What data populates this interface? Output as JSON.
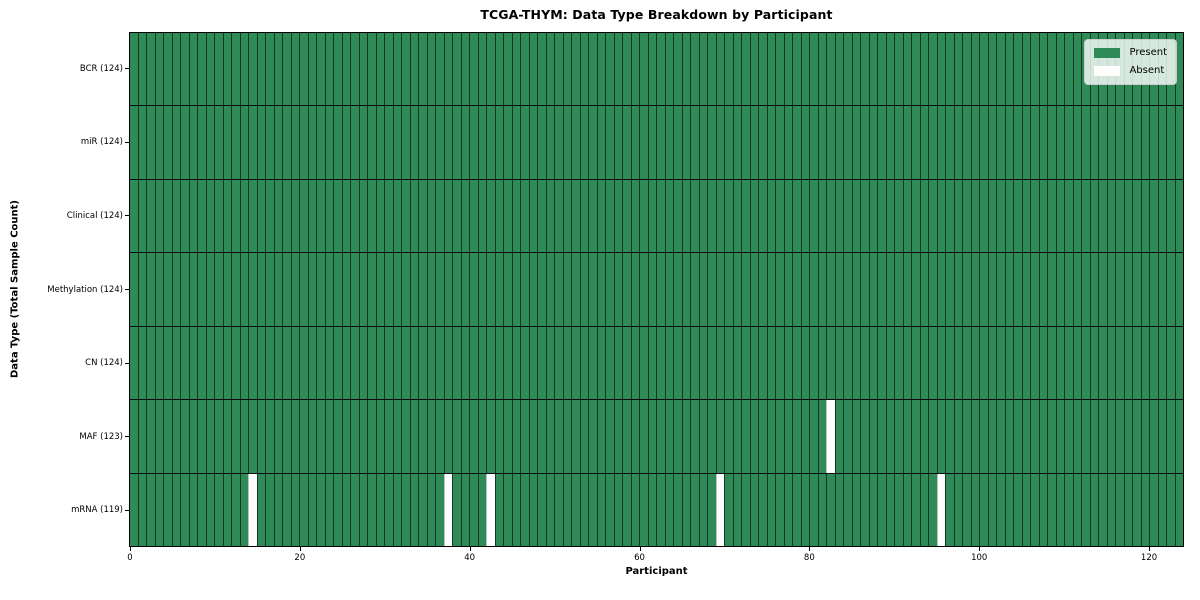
{
  "chart_data": {
    "type": "heatmap",
    "title": "TCGA-THYM: Data Type Breakdown by Participant",
    "xlabel": "Participant",
    "ylabel": "Data Type (Total Sample Count)",
    "x_ticks": [
      0,
      20,
      40,
      60,
      80,
      100,
      120
    ],
    "x_range": [
      0,
      124
    ],
    "n_participants": 124,
    "grid": true,
    "legend_position": "upper right",
    "rows": [
      {
        "label": "BCR (124)",
        "data_type": "BCR",
        "present_count": 124,
        "absent_participants": []
      },
      {
        "label": "miR (124)",
        "data_type": "miR",
        "present_count": 124,
        "absent_participants": []
      },
      {
        "label": "Clinical (124)",
        "data_type": "Clinical",
        "present_count": 124,
        "absent_participants": []
      },
      {
        "label": "Methylation (124)",
        "data_type": "Methylation",
        "present_count": 124,
        "absent_participants": []
      },
      {
        "label": "CN (124)",
        "data_type": "CN",
        "present_count": 124,
        "absent_participants": []
      },
      {
        "label": "MAF (123)",
        "data_type": "MAF",
        "present_count": 123,
        "absent_participants": [
          82
        ]
      },
      {
        "label": "mRNA (119)",
        "data_type": "mRNA",
        "present_count": 119,
        "absent_participants": [
          14,
          37,
          42,
          69,
          95
        ]
      }
    ],
    "legend": [
      {
        "label": "Present",
        "color": "#2e8b57"
      },
      {
        "label": "Absent",
        "color": "#ffffff"
      }
    ],
    "colors": {
      "present": "#2e8b57",
      "absent": "#ffffff",
      "cell_edge": "rgba(0,0,0,0.6)",
      "row_divider": "#0d0d0d",
      "spine": "#000000"
    }
  }
}
